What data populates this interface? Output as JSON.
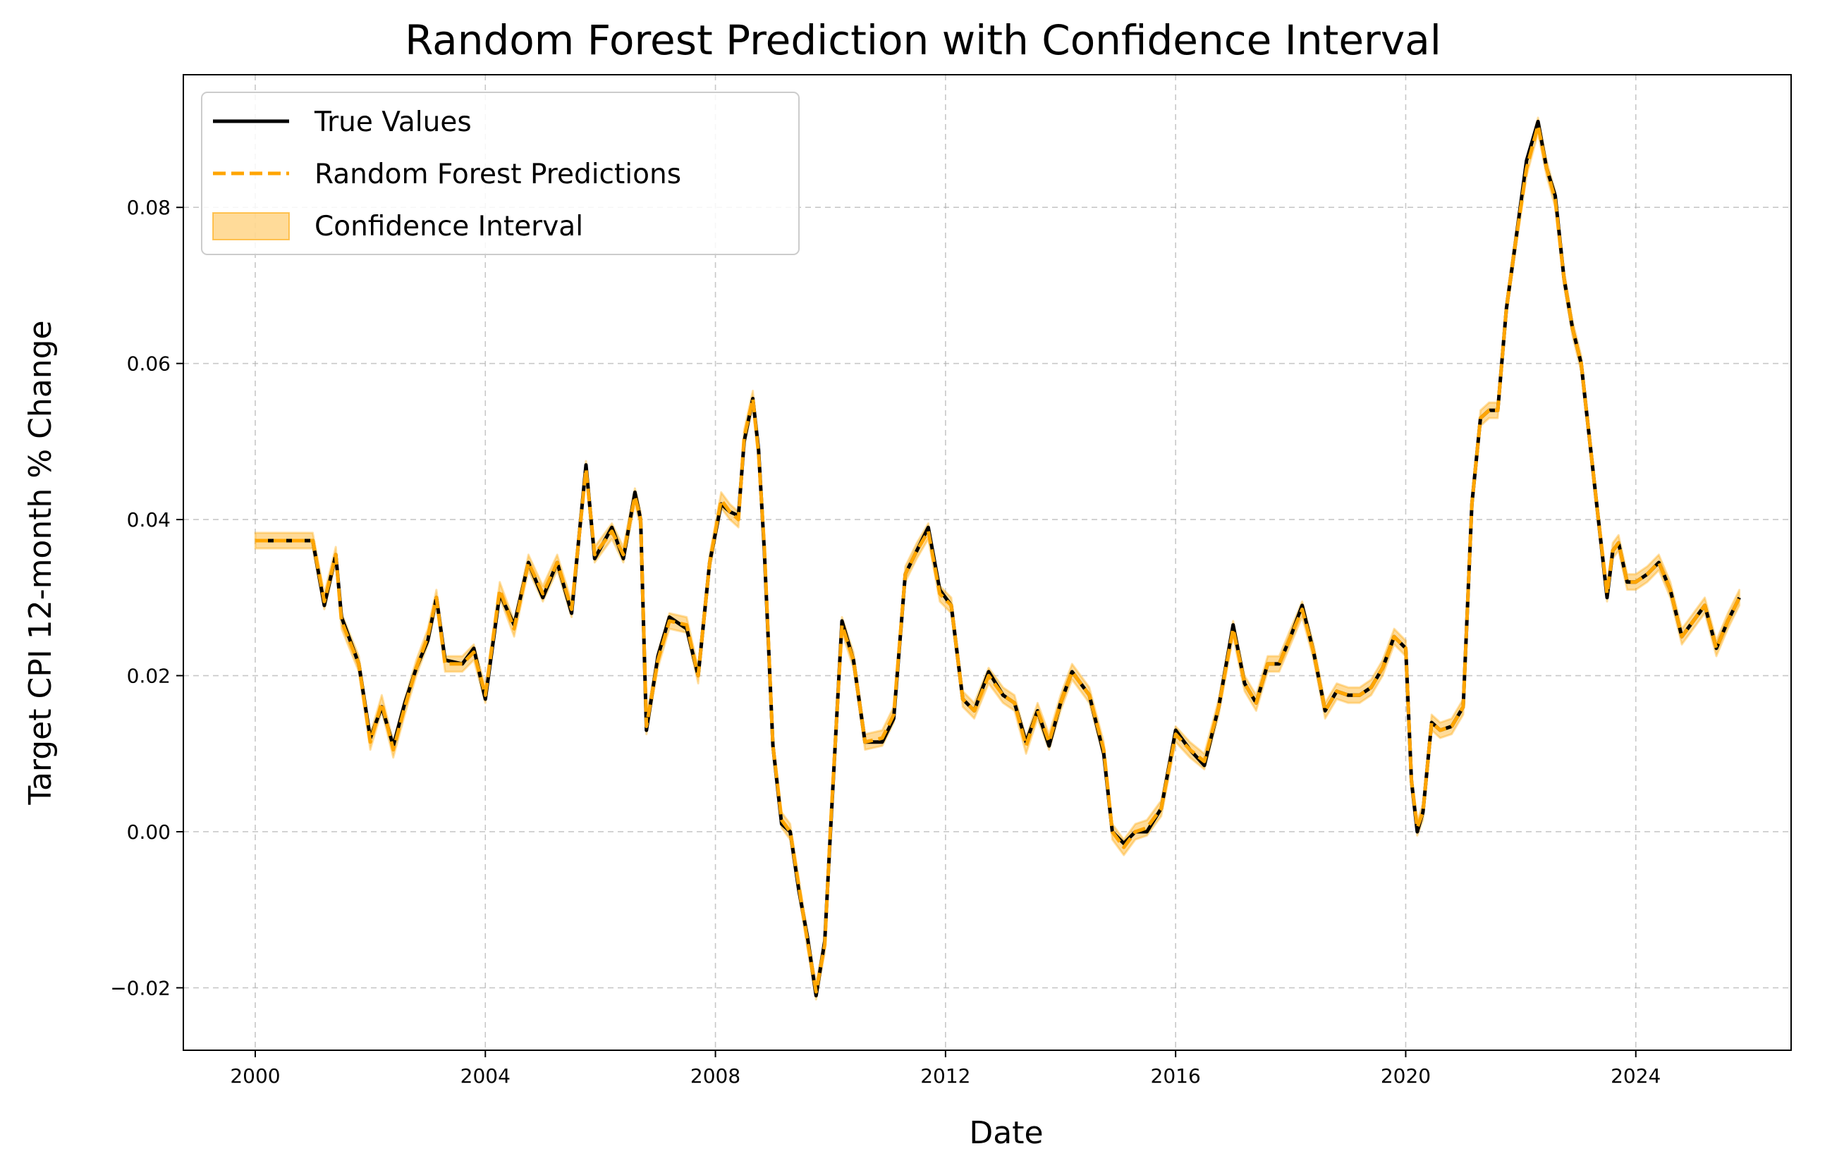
{
  "chart_data": {
    "type": "line",
    "title": "Random Forest Prediction with Confidence Interval",
    "xlabel": "Date",
    "ylabel": "Target CPI 12-month % Change",
    "xlim": [
      1998.75,
      2026.7
    ],
    "ylim": [
      -0.028,
      0.097
    ],
    "grid": true,
    "legend_position": "top-left",
    "x_ticks": [
      2000,
      2004,
      2008,
      2012,
      2016,
      2020,
      2024
    ],
    "x_tick_labels": [
      "2000",
      "2004",
      "2008",
      "2012",
      "2016",
      "2020",
      "2024"
    ],
    "y_ticks": [
      -0.02,
      0.0,
      0.02,
      0.04,
      0.06,
      0.08
    ],
    "y_tick_labels": [
      "−0.02",
      "0.00",
      "0.02",
      "0.04",
      "0.06",
      "0.08"
    ],
    "legend": [
      "True Values",
      "Random Forest Predictions",
      "Confidence Interval"
    ],
    "colors": {
      "true": "#000000",
      "pred": "#FFA500",
      "ci_fill": "#FFA500",
      "ci_fill_opacity": 0.4,
      "grid": "#b0b0b0"
    },
    "ci_half_width": 0.001,
    "series": [
      {
        "name": "True Values",
        "x": [
          2000.0,
          2001.0,
          2001.2,
          2001.4,
          2001.5,
          2001.8,
          2002.0,
          2002.2,
          2002.4,
          2002.6,
          2002.8,
          2003.0,
          2003.15,
          2003.3,
          2003.6,
          2003.8,
          2004.0,
          2004.25,
          2004.5,
          2004.75,
          2005.0,
          2005.25,
          2005.5,
          2005.75,
          2005.9,
          2006.2,
          2006.4,
          2006.6,
          2006.7,
          2006.8,
          2007.0,
          2007.2,
          2007.5,
          2007.7,
          2007.9,
          2008.1,
          2008.25,
          2008.4,
          2008.5,
          2008.65,
          2008.75,
          2008.85,
          2009.0,
          2009.15,
          2009.3,
          2009.45,
          2009.6,
          2009.75,
          2009.9,
          2010.0,
          2010.2,
          2010.4,
          2010.6,
          2010.9,
          2011.1,
          2011.3,
          2011.5,
          2011.7,
          2011.9,
          2012.1,
          2012.3,
          2012.5,
          2012.75,
          2013.0,
          2013.2,
          2013.4,
          2013.6,
          2013.8,
          2014.0,
          2014.2,
          2014.5,
          2014.75,
          2014.9,
          2015.1,
          2015.3,
          2015.5,
          2015.75,
          2016.0,
          2016.25,
          2016.5,
          2016.75,
          2017.0,
          2017.2,
          2017.4,
          2017.6,
          2017.8,
          2018.0,
          2018.2,
          2018.4,
          2018.6,
          2018.8,
          2019.0,
          2019.2,
          2019.4,
          2019.6,
          2019.8,
          2020.0,
          2020.1,
          2020.2,
          2020.3,
          2020.45,
          2020.6,
          2020.8,
          2021.0,
          2021.15,
          2021.3,
          2021.45,
          2021.6,
          2021.75,
          2021.9,
          2022.1,
          2022.3,
          2022.45,
          2022.6,
          2022.75,
          2022.9,
          2023.05,
          2023.2,
          2023.35,
          2023.5,
          2023.6,
          2023.7,
          2023.85,
          2024.0,
          2024.2,
          2024.4,
          2024.6,
          2024.8,
          2025.0,
          2025.2,
          2025.4,
          2025.6,
          2025.8
        ],
        "y": [
          0.0373,
          0.0373,
          0.029,
          0.0355,
          0.0275,
          0.0215,
          0.012,
          0.016,
          0.011,
          0.0165,
          0.021,
          0.0245,
          0.03,
          0.022,
          0.0215,
          0.0235,
          0.017,
          0.0305,
          0.0265,
          0.0345,
          0.03,
          0.0345,
          0.028,
          0.047,
          0.035,
          0.039,
          0.035,
          0.0435,
          0.04,
          0.013,
          0.0225,
          0.0275,
          0.026,
          0.02,
          0.0345,
          0.042,
          0.041,
          0.0405,
          0.05,
          0.0555,
          0.049,
          0.036,
          0.011,
          0.001,
          0.0,
          -0.0075,
          -0.0135,
          -0.021,
          -0.014,
          0.0,
          0.027,
          0.022,
          0.0115,
          0.0115,
          0.0145,
          0.033,
          0.036,
          0.039,
          0.031,
          0.029,
          0.017,
          0.0155,
          0.0205,
          0.0175,
          0.0165,
          0.0115,
          0.0155,
          0.011,
          0.0165,
          0.0205,
          0.0175,
          0.01,
          0.0,
          -0.0015,
          0.0,
          0.0,
          0.003,
          0.013,
          0.0105,
          0.0085,
          0.016,
          0.0265,
          0.019,
          0.0165,
          0.0215,
          0.0215,
          0.025,
          0.029,
          0.023,
          0.0155,
          0.018,
          0.0175,
          0.0175,
          0.0185,
          0.021,
          0.025,
          0.0235,
          0.0065,
          0.0,
          0.0025,
          0.014,
          0.013,
          0.0135,
          0.016,
          0.042,
          0.053,
          0.054,
          0.054,
          0.067,
          0.075,
          0.086,
          0.091,
          0.085,
          0.0815,
          0.071,
          0.0645,
          0.06,
          0.05,
          0.04,
          0.03,
          0.036,
          0.037,
          0.032,
          0.032,
          0.033,
          0.0345,
          0.031,
          0.025,
          0.027,
          0.029,
          0.0235,
          0.027,
          0.03
        ]
      },
      {
        "name": "Random Forest Predictions",
        "x": [
          2000.0,
          2001.0,
          2001.2,
          2001.4,
          2001.5,
          2001.8,
          2002.0,
          2002.2,
          2002.4,
          2002.6,
          2002.8,
          2003.0,
          2003.15,
          2003.3,
          2003.6,
          2003.8,
          2004.0,
          2004.25,
          2004.5,
          2004.75,
          2005.0,
          2005.25,
          2005.5,
          2005.75,
          2005.9,
          2006.2,
          2006.4,
          2006.6,
          2006.7,
          2006.8,
          2007.0,
          2007.2,
          2007.5,
          2007.7,
          2007.9,
          2008.1,
          2008.25,
          2008.4,
          2008.5,
          2008.65,
          2008.75,
          2008.85,
          2009.0,
          2009.15,
          2009.3,
          2009.45,
          2009.6,
          2009.75,
          2009.9,
          2010.0,
          2010.2,
          2010.4,
          2010.6,
          2010.9,
          2011.1,
          2011.3,
          2011.5,
          2011.7,
          2011.9,
          2012.1,
          2012.3,
          2012.5,
          2012.75,
          2013.0,
          2013.2,
          2013.4,
          2013.6,
          2013.8,
          2014.0,
          2014.2,
          2014.5,
          2014.75,
          2014.9,
          2015.1,
          2015.3,
          2015.5,
          2015.75,
          2016.0,
          2016.25,
          2016.5,
          2016.75,
          2017.0,
          2017.2,
          2017.4,
          2017.6,
          2017.8,
          2018.0,
          2018.2,
          2018.4,
          2018.6,
          2018.8,
          2019.0,
          2019.2,
          2019.4,
          2019.6,
          2019.8,
          2020.0,
          2020.1,
          2020.2,
          2020.3,
          2020.45,
          2020.6,
          2020.8,
          2021.0,
          2021.15,
          2021.3,
          2021.45,
          2021.6,
          2021.75,
          2021.9,
          2022.1,
          2022.3,
          2022.45,
          2022.6,
          2022.75,
          2022.9,
          2023.05,
          2023.2,
          2023.35,
          2023.5,
          2023.6,
          2023.7,
          2023.85,
          2024.0,
          2024.2,
          2024.4,
          2024.6,
          2024.8,
          2025.0,
          2025.2,
          2025.4,
          2025.6,
          2025.8
        ],
        "y": [
          0.0373,
          0.0373,
          0.0295,
          0.0355,
          0.027,
          0.0215,
          0.0115,
          0.0165,
          0.0105,
          0.016,
          0.021,
          0.025,
          0.03,
          0.0215,
          0.0215,
          0.023,
          0.0175,
          0.031,
          0.026,
          0.0345,
          0.0305,
          0.0345,
          0.0285,
          0.0465,
          0.0355,
          0.0385,
          0.0355,
          0.043,
          0.04,
          0.0135,
          0.022,
          0.027,
          0.0265,
          0.02,
          0.0345,
          0.0425,
          0.041,
          0.04,
          0.0505,
          0.0555,
          0.0485,
          0.0365,
          0.011,
          0.0015,
          0.0,
          -0.007,
          -0.014,
          -0.0205,
          -0.0145,
          0.0005,
          0.0265,
          0.022,
          0.0115,
          0.012,
          0.015,
          0.033,
          0.036,
          0.0385,
          0.0305,
          0.029,
          0.017,
          0.0155,
          0.02,
          0.0175,
          0.0165,
          0.011,
          0.0155,
          0.0115,
          0.0165,
          0.0205,
          0.0175,
          0.0105,
          0.0,
          -0.002,
          0.0,
          0.0005,
          0.003,
          0.0125,
          0.0105,
          0.009,
          0.016,
          0.026,
          0.019,
          0.0165,
          0.0215,
          0.0215,
          0.025,
          0.0285,
          0.023,
          0.0155,
          0.018,
          0.0175,
          0.0175,
          0.0185,
          0.021,
          0.025,
          0.0235,
          0.0065,
          0.0005,
          0.0025,
          0.014,
          0.013,
          0.0135,
          0.016,
          0.042,
          0.053,
          0.054,
          0.054,
          0.067,
          0.075,
          0.085,
          0.0905,
          0.085,
          0.081,
          0.071,
          0.0645,
          0.06,
          0.05,
          0.04,
          0.0305,
          0.036,
          0.037,
          0.032,
          0.032,
          0.033,
          0.0345,
          0.031,
          0.025,
          0.027,
          0.029,
          0.0235,
          0.027,
          0.03
        ]
      }
    ]
  }
}
